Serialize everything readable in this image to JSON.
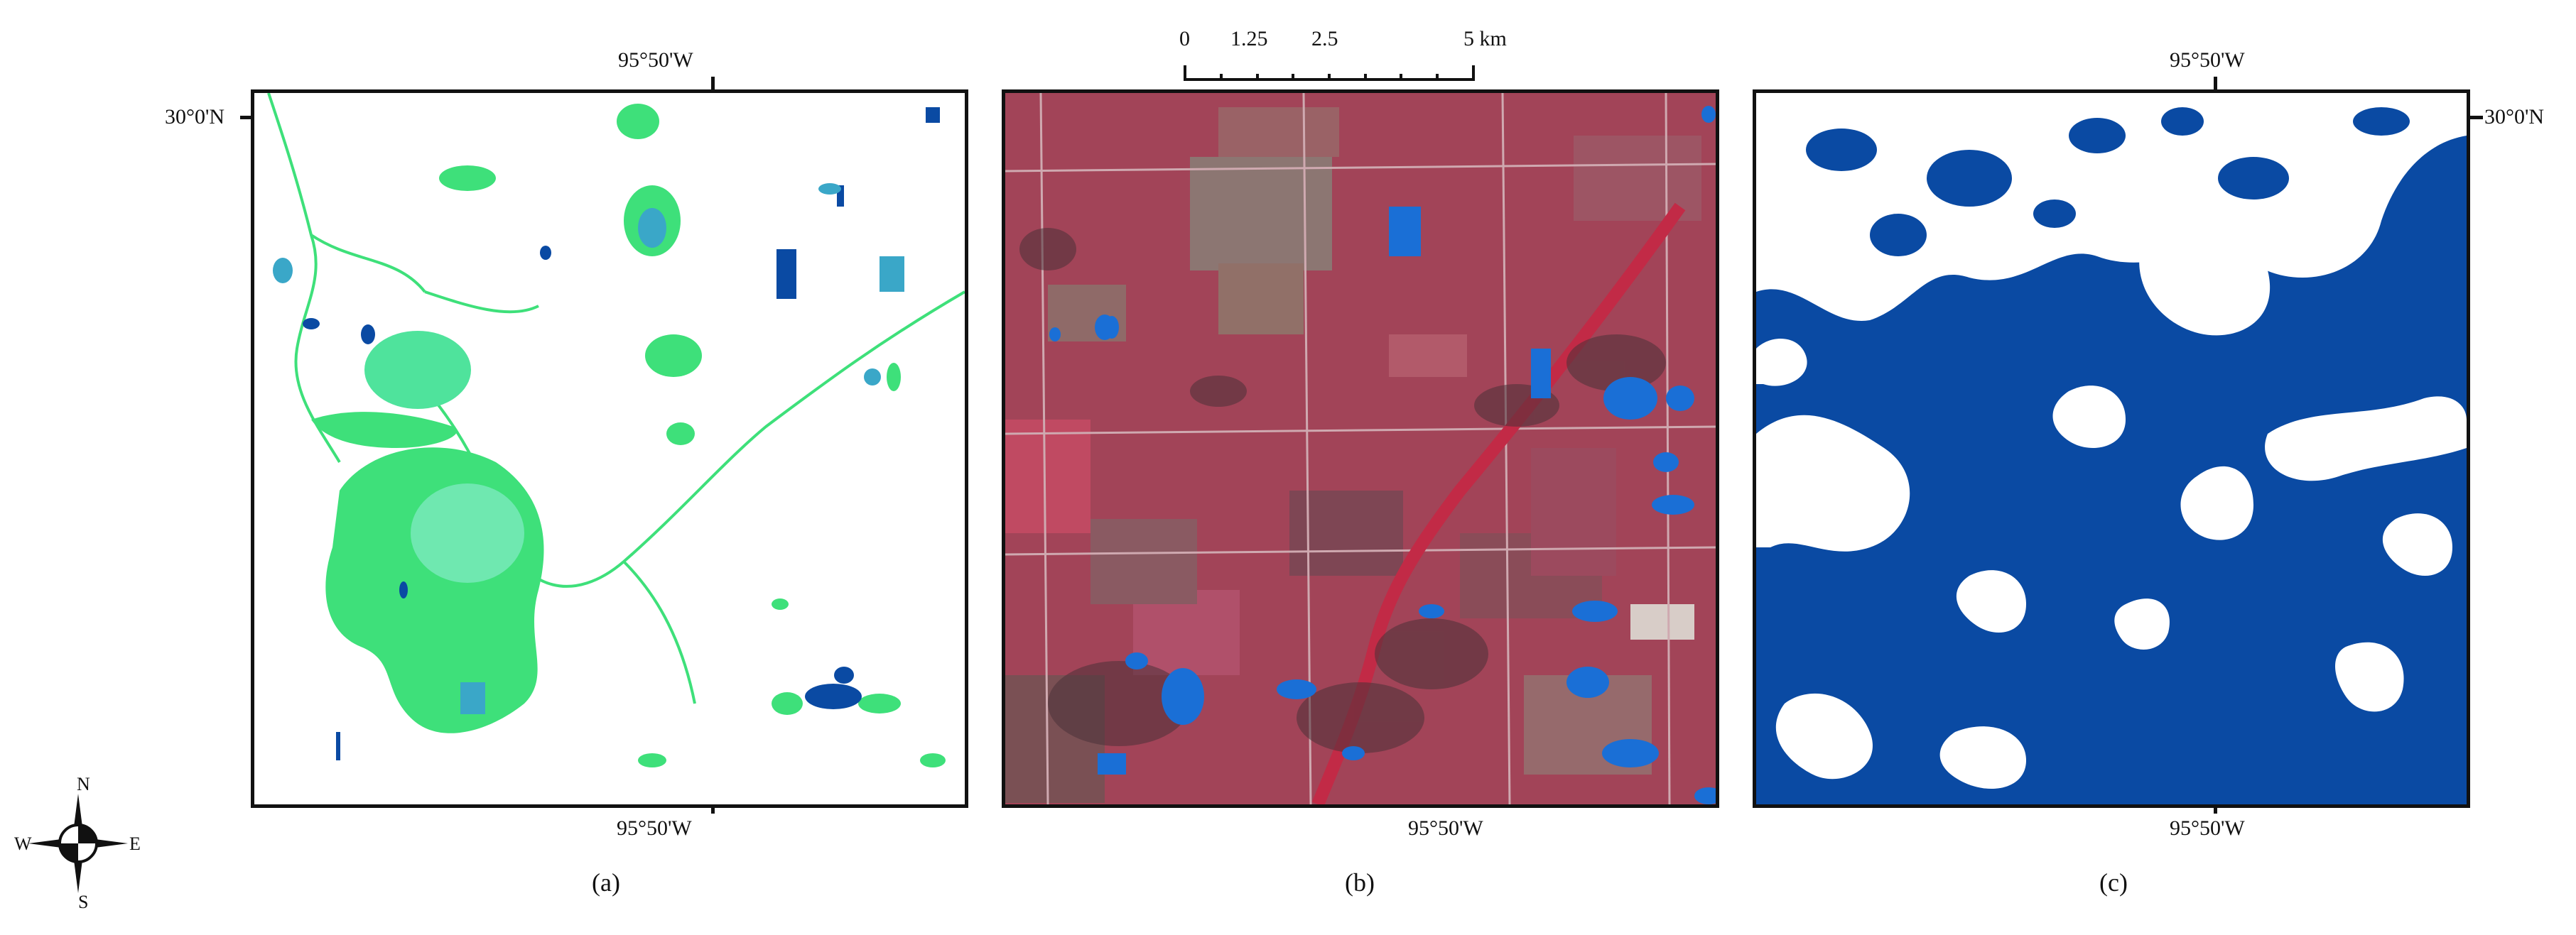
{
  "panels": [
    {
      "label": "(a)",
      "top_lon": "95°50'W",
      "bottom_lon": "95°50'W",
      "lat": "30°0'N"
    },
    {
      "label": "(b)",
      "bottom_lon": "95°50'W"
    },
    {
      "label": "(c)",
      "top_lon": "95°50'W",
      "bottom_lon": "95°50'W",
      "lat": "30°0'N"
    }
  ],
  "scale_bar": {
    "ticks": [
      "0",
      "1.25",
      "2.5",
      "5 km"
    ]
  },
  "compass": {
    "n": "N",
    "s": "S",
    "e": "E",
    "w": "W"
  },
  "colors": {
    "water_blue": "#0a4aa3",
    "wetland_green": "#3ee07a",
    "teal": "#3aa7c8",
    "false_color_red": "#a8485a",
    "frame": "#111111"
  }
}
